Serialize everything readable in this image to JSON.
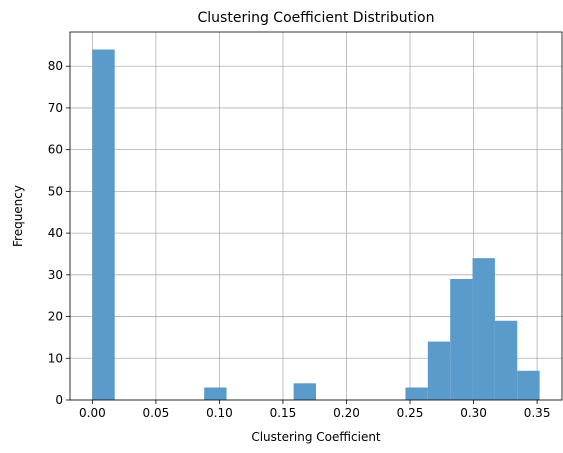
{
  "chart_data": {
    "type": "bar",
    "title": "Clustering Coefficient Distribution",
    "xlabel": "Clustering Coefficient",
    "ylabel": "Frequency",
    "xlim": [
      -0.0176,
      0.3696
    ],
    "ylim": [
      0,
      88.2
    ],
    "xticks": [
      0.0,
      0.05,
      0.1,
      0.15,
      0.2,
      0.25,
      0.3,
      0.35
    ],
    "xtick_labels": [
      "0.00",
      "0.05",
      "0.10",
      "0.15",
      "0.20",
      "0.25",
      "0.30",
      "0.35"
    ],
    "yticks": [
      0,
      10,
      20,
      30,
      40,
      50,
      60,
      70,
      80
    ],
    "ytick_labels": [
      "0",
      "10",
      "20",
      "30",
      "40",
      "50",
      "60",
      "70",
      "80"
    ],
    "grid": true,
    "bar_color": "#5B9BCB",
    "bins": [
      {
        "x0": 0.0,
        "x1": 0.0176,
        "value": 84
      },
      {
        "x0": 0.088,
        "x1": 0.1056,
        "value": 3
      },
      {
        "x0": 0.1584,
        "x1": 0.176,
        "value": 4
      },
      {
        "x0": 0.2464,
        "x1": 0.264,
        "value": 3
      },
      {
        "x0": 0.264,
        "x1": 0.2816,
        "value": 14
      },
      {
        "x0": 0.2816,
        "x1": 0.2992,
        "value": 29
      },
      {
        "x0": 0.2992,
        "x1": 0.3168,
        "value": 34
      },
      {
        "x0": 0.3168,
        "x1": 0.3344,
        "value": 19
      },
      {
        "x0": 0.3344,
        "x1": 0.352,
        "value": 7
      }
    ]
  }
}
